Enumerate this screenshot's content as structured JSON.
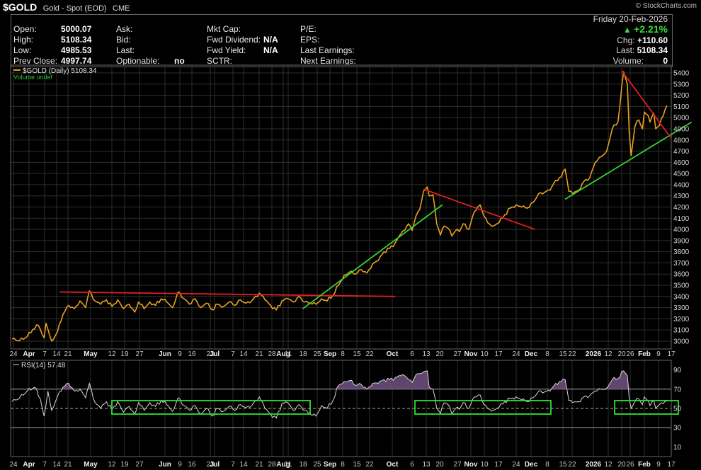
{
  "header": {
    "symbol": "$GOLD",
    "description": "Gold - Spot (EOD)",
    "exchange": "CME",
    "watermark": "© StockCharts.com"
  },
  "quote": {
    "open_label": "Open:",
    "open": "5000.07",
    "high_label": "High:",
    "high": "5108.34",
    "low_label": "Low:",
    "low": "4985.53",
    "prev_close_label": "Prev Close:",
    "prev_close": "4997.74",
    "ask_label": "Ask:",
    "bid_label": "Bid:",
    "last_label": "Last:",
    "optionable_label": "Optionable:",
    "optionable": "no",
    "mktcap_label": "Mkt Cap:",
    "fwd_div_label": "Fwd Dividend:",
    "fwd_div": "N/A",
    "fwd_yield_label": "Fwd Yield:",
    "fwd_yield": "N/A",
    "sctr_label": "SCTR:",
    "pe_label": "P/E:",
    "eps_label": "EPS:",
    "last_earn_label": "Last Earnings:",
    "next_earn_label": "Next Earnings:",
    "date": "Friday 20-Feb-2026",
    "pct_change": "+2.21%",
    "chg_label": "Chg:",
    "chg": "+110.60",
    "last_r_label": "Last:",
    "last_r": "5108.34",
    "volume_label": "Volume:",
    "volume": "0"
  },
  "colors": {
    "price_line": "#e8a020",
    "trend_red": "#e02020",
    "trend_green": "#38d030",
    "rsi_line": "#d8d8d8",
    "rsi_fill": "#6a4e7a",
    "box_green": "#30e030",
    "grid": "#2e2e2e"
  },
  "chart_data": [
    {
      "type": "line",
      "title": "$GOLD (Daily) 5108.34",
      "legend": [
        "$GOLD (Daily) 5108.34",
        "Volume undef"
      ],
      "y_axis_side": "right",
      "ylim": [
        2930,
        5470
      ],
      "y_ticks": [
        3000,
        3100,
        3200,
        3300,
        3400,
        3500,
        3600,
        3700,
        3800,
        3900,
        4000,
        4100,
        4200,
        4300,
        4400,
        4500,
        4600,
        4700,
        4800,
        4900,
        5000,
        5100,
        5200,
        5300,
        5400
      ],
      "x_tick_labels": [
        "24",
        "Apr",
        "7",
        "14",
        "21",
        "May",
        "12",
        "19",
        "27",
        "Jun",
        "9",
        "16",
        "23",
        "Jul",
        "7",
        "14",
        "21",
        "28",
        "Aug",
        "11",
        "18",
        "25",
        "Sep",
        "8",
        "15",
        "22",
        "Oct",
        "6",
        "13",
        "20",
        "27",
        "Nov",
        "10",
        "17",
        "24",
        "Dec",
        "8",
        "15",
        "22",
        "2026",
        "12",
        "20",
        "26",
        "Feb",
        "9",
        "17"
      ],
      "anchors": [
        [
          0,
          3020
        ],
        [
          4,
          3005
        ],
        [
          8,
          3040
        ],
        [
          11,
          3105
        ],
        [
          14,
          3140
        ],
        [
          17,
          3030
        ],
        [
          18,
          3160
        ],
        [
          21,
          3000
        ],
        [
          24,
          3080
        ],
        [
          27,
          3240
        ],
        [
          30,
          3320
        ],
        [
          33,
          3290
        ],
        [
          36,
          3360
        ],
        [
          39,
          3300
        ],
        [
          41,
          3450
        ],
        [
          44,
          3360
        ],
        [
          47,
          3330
        ],
        [
          50,
          3370
        ],
        [
          53,
          3310
        ],
        [
          56,
          3370
        ],
        [
          59,
          3290
        ],
        [
          62,
          3330
        ],
        [
          65,
          3260
        ],
        [
          67,
          3350
        ],
        [
          70,
          3290
        ],
        [
          73,
          3350
        ],
        [
          76,
          3320
        ],
        [
          79,
          3380
        ],
        [
          82,
          3350
        ],
        [
          85,
          3300
        ],
        [
          88,
          3440
        ],
        [
          91,
          3380
        ],
        [
          94,
          3330
        ],
        [
          97,
          3380
        ],
        [
          100,
          3300
        ],
        [
          103,
          3340
        ],
        [
          106,
          3280
        ],
        [
          109,
          3330
        ],
        [
          112,
          3310
        ],
        [
          115,
          3350
        ],
        [
          118,
          3320
        ],
        [
          121,
          3370
        ],
        [
          124,
          3340
        ],
        [
          127,
          3360
        ],
        [
          131,
          3430
        ],
        [
          134,
          3370
        ],
        [
          137,
          3320
        ],
        [
          140,
          3280
        ],
        [
          143,
          3360
        ],
        [
          146,
          3380
        ],
        [
          149,
          3350
        ],
        [
          152,
          3400
        ],
        [
          155,
          3350
        ],
        [
          158,
          3340
        ],
        [
          161,
          3330
        ],
        [
          164,
          3380
        ],
        [
          167,
          3360
        ],
        [
          170,
          3410
        ],
        [
          173,
          3500
        ],
        [
          176,
          3590
        ],
        [
          179,
          3620
        ],
        [
          182,
          3600
        ],
        [
          185,
          3640
        ],
        [
          188,
          3610
        ],
        [
          191,
          3690
        ],
        [
          194,
          3720
        ],
        [
          197,
          3800
        ],
        [
          200,
          3830
        ],
        [
          203,
          3880
        ],
        [
          206,
          3960
        ],
        [
          208,
          3990
        ],
        [
          210,
          4050
        ],
        [
          212,
          3990
        ],
        [
          214,
          4120
        ],
        [
          216,
          4180
        ],
        [
          218,
          4340
        ],
        [
          220,
          4380
        ],
        [
          221,
          4300
        ],
        [
          223,
          4310
        ],
        [
          225,
          4050
        ],
        [
          227,
          3950
        ],
        [
          229,
          4030
        ],
        [
          231,
          4010
        ],
        [
          233,
          3940
        ],
        [
          235,
          3990
        ],
        [
          237,
          3980
        ],
        [
          239,
          4050
        ],
        [
          242,
          4000
        ],
        [
          245,
          4160
        ],
        [
          248,
          4220
        ],
        [
          250,
          4120
        ],
        [
          252,
          4060
        ],
        [
          255,
          4030
        ],
        [
          258,
          4060
        ],
        [
          261,
          4130
        ],
        [
          264,
          4190
        ],
        [
          267,
          4220
        ],
        [
          270,
          4200
        ],
        [
          273,
          4190
        ],
        [
          276,
          4240
        ],
        [
          279,
          4320
        ],
        [
          282,
          4330
        ],
        [
          285,
          4350
        ],
        [
          288,
          4440
        ],
        [
          291,
          4470
        ],
        [
          293,
          4540
        ],
        [
          295,
          4340
        ],
        [
          297,
          4320
        ],
        [
          300,
          4350
        ],
        [
          303,
          4430
        ],
        [
          306,
          4460
        ],
        [
          309,
          4600
        ],
        [
          312,
          4650
        ],
        [
          315,
          4700
        ],
        [
          318,
          4900
        ],
        [
          321,
          4960
        ],
        [
          324,
          5410
        ],
        [
          326,
          5300
        ],
        [
          327,
          4860
        ],
        [
          328,
          4660
        ],
        [
          330,
          4920
        ],
        [
          332,
          4980
        ],
        [
          334,
          4900
        ],
        [
          335,
          5050
        ],
        [
          337,
          5020
        ],
        [
          338,
          4960
        ],
        [
          340,
          5040
        ],
        [
          341,
          4900
        ],
        [
          343,
          4930
        ],
        [
          344,
          4990
        ],
        [
          347,
          5108
        ]
      ]
    },
    {
      "type": "line",
      "title": "RSI(14) 57.48",
      "y_axis_side": "right",
      "ylim": [
        0,
        100
      ],
      "y_ticks": [
        10,
        30,
        50,
        70,
        90
      ],
      "overbought": 70,
      "oversold": 30,
      "midline": 50,
      "anchors": [
        [
          0,
          57
        ],
        [
          4,
          61
        ],
        [
          8,
          68
        ],
        [
          12,
          72
        ],
        [
          15,
          60
        ],
        [
          17,
          42
        ],
        [
          19,
          68
        ],
        [
          21,
          48
        ],
        [
          24,
          62
        ],
        [
          27,
          72
        ],
        [
          30,
          76
        ],
        [
          33,
          68
        ],
        [
          36,
          70
        ],
        [
          39,
          61
        ],
        [
          41,
          76
        ],
        [
          44,
          56
        ],
        [
          47,
          50
        ],
        [
          50,
          57
        ],
        [
          53,
          49
        ],
        [
          56,
          57
        ],
        [
          59,
          46
        ],
        [
          62,
          52
        ],
        [
          65,
          44
        ],
        [
          67,
          56
        ],
        [
          70,
          48
        ],
        [
          73,
          56
        ],
        [
          76,
          52
        ],
        [
          79,
          58
        ],
        [
          82,
          54
        ],
        [
          85,
          47
        ],
        [
          88,
          61
        ],
        [
          91,
          53
        ],
        [
          94,
          48
        ],
        [
          97,
          53
        ],
        [
          100,
          44
        ],
        [
          103,
          50
        ],
        [
          106,
          42
        ],
        [
          109,
          50
        ],
        [
          112,
          47
        ],
        [
          115,
          52
        ],
        [
          118,
          48
        ],
        [
          121,
          54
        ],
        [
          124,
          51
        ],
        [
          127,
          53
        ],
        [
          131,
          62
        ],
        [
          134,
          50
        ],
        [
          137,
          44
        ],
        [
          140,
          40
        ],
        [
          143,
          55
        ],
        [
          146,
          56
        ],
        [
          149,
          48
        ],
        [
          152,
          54
        ],
        [
          155,
          48
        ],
        [
          158,
          44
        ],
        [
          161,
          42
        ],
        [
          164,
          53
        ],
        [
          167,
          50
        ],
        [
          170,
          58
        ],
        [
          173,
          74
        ],
        [
          176,
          78
        ],
        [
          179,
          79
        ],
        [
          182,
          74
        ],
        [
          185,
          75
        ],
        [
          188,
          70
        ],
        [
          191,
          76
        ],
        [
          194,
          76
        ],
        [
          197,
          80
        ],
        [
          200,
          80
        ],
        [
          203,
          82
        ],
        [
          206,
          84
        ],
        [
          208,
          84
        ],
        [
          210,
          80
        ],
        [
          212,
          77
        ],
        [
          214,
          85
        ],
        [
          216,
          86
        ],
        [
          218,
          88
        ],
        [
          220,
          89
        ],
        [
          221,
          72
        ],
        [
          223,
          70
        ],
        [
          225,
          50
        ],
        [
          227,
          45
        ],
        [
          229,
          56
        ],
        [
          231,
          54
        ],
        [
          233,
          44
        ],
        [
          235,
          50
        ],
        [
          237,
          49
        ],
        [
          239,
          56
        ],
        [
          242,
          50
        ],
        [
          245,
          62
        ],
        [
          248,
          64
        ],
        [
          250,
          54
        ],
        [
          252,
          50
        ],
        [
          255,
          48
        ],
        [
          258,
          51
        ],
        [
          261,
          57
        ],
        [
          264,
          60
        ],
        [
          267,
          62
        ],
        [
          270,
          59
        ],
        [
          273,
          57
        ],
        [
          276,
          61
        ],
        [
          279,
          68
        ],
        [
          282,
          67
        ],
        [
          285,
          68
        ],
        [
          288,
          76
        ],
        [
          291,
          78
        ],
        [
          293,
          80
        ],
        [
          295,
          58
        ],
        [
          297,
          56
        ],
        [
          300,
          57
        ],
        [
          303,
          62
        ],
        [
          306,
          63
        ],
        [
          309,
          68
        ],
        [
          312,
          70
        ],
        [
          315,
          71
        ],
        [
          318,
          80
        ],
        [
          321,
          81
        ],
        [
          324,
          89
        ],
        [
          326,
          84
        ],
        [
          327,
          60
        ],
        [
          328,
          50
        ],
        [
          330,
          57
        ],
        [
          332,
          60
        ],
        [
          334,
          54
        ],
        [
          335,
          62
        ],
        [
          337,
          58
        ],
        [
          338,
          53
        ],
        [
          340,
          58
        ],
        [
          341,
          50
        ],
        [
          343,
          54
        ],
        [
          344,
          56
        ],
        [
          347,
          57.48
        ]
      ]
    }
  ]
}
